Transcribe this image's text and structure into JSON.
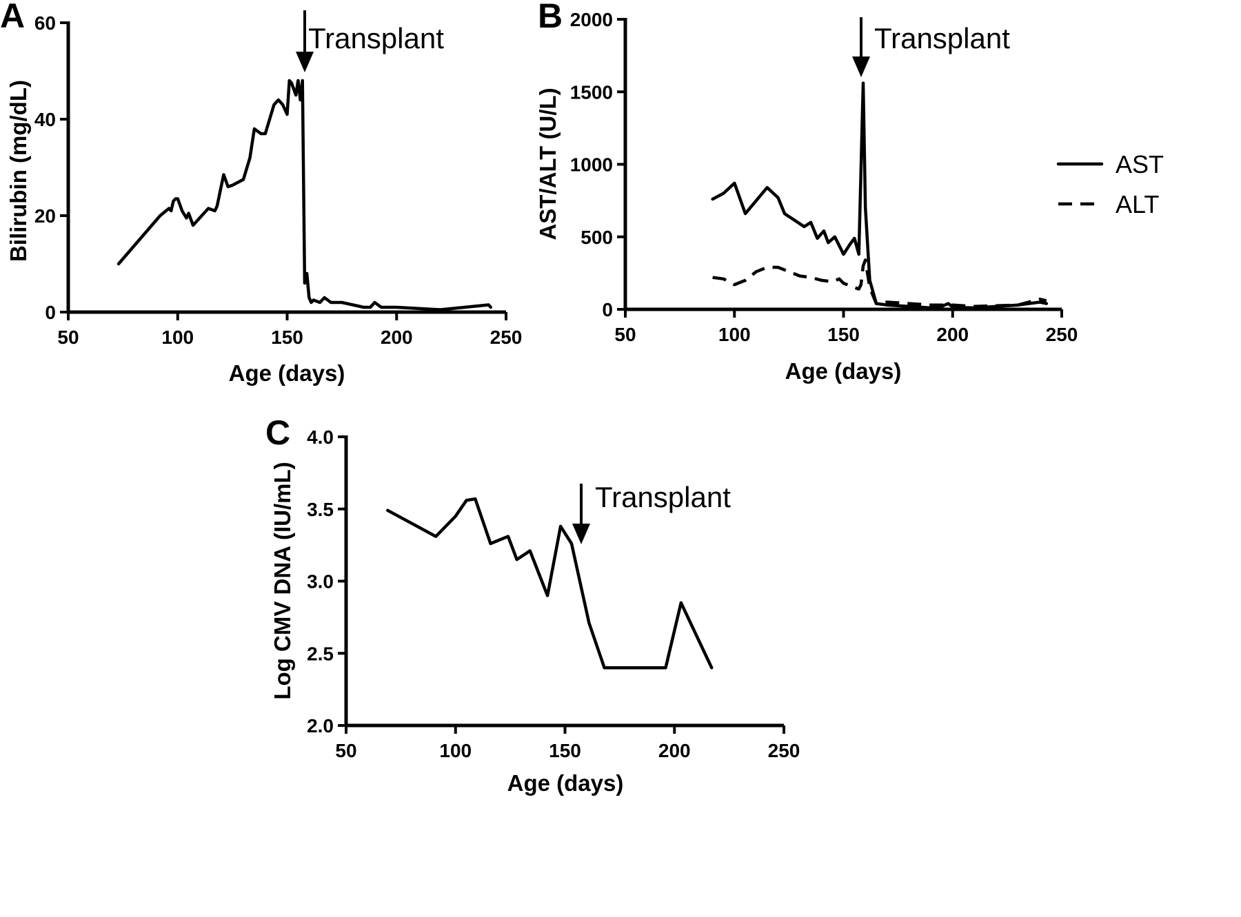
{
  "chart_data": [
    {
      "panel": "A",
      "type": "line",
      "xlabel": "Age (days)",
      "ylabel": "Bilirubin (mg/dL)",
      "xlim": [
        50,
        250
      ],
      "ylim": [
        0,
        60
      ],
      "xticks": [
        50,
        100,
        150,
        200,
        250
      ],
      "yticks": [
        0,
        20,
        40,
        60
      ],
      "annotations": [
        {
          "text": "Transplant",
          "x": 157
        }
      ],
      "series": [
        {
          "style": "solid",
          "x": [
            73,
            92,
            96,
            97,
            98,
            99,
            100,
            102,
            104,
            105,
            107,
            110,
            114,
            117,
            118,
            121,
            123,
            125,
            130,
            133,
            135,
            138,
            140,
            144,
            146,
            148,
            150,
            151,
            152,
            154,
            155,
            156,
            157,
            158,
            159,
            160,
            161,
            162,
            165,
            167,
            170,
            175,
            180,
            185,
            188,
            190,
            193,
            200,
            220,
            242,
            243
          ],
          "y": [
            10,
            20,
            21.5,
            21,
            23,
            23.5,
            23.5,
            21,
            19.5,
            20.5,
            18,
            19.5,
            21.5,
            21,
            22,
            28.5,
            26,
            26.3,
            27.5,
            32,
            38,
            37,
            37,
            43,
            44,
            43,
            41,
            48,
            47.5,
            45,
            48,
            44,
            48,
            6,
            8,
            3,
            2,
            2.5,
            2,
            3,
            2,
            2,
            1.5,
            1,
            1,
            2,
            1,
            1,
            0.5,
            1.5,
            1
          ]
        }
      ]
    },
    {
      "panel": "B",
      "type": "line",
      "xlabel": "Age (days)",
      "ylabel": "AST/ALT (U/L)",
      "xlim": [
        50,
        250
      ],
      "ylim": [
        0,
        2000
      ],
      "xticks": [
        50,
        100,
        150,
        200,
        250
      ],
      "yticks": [
        0,
        500,
        1000,
        1500,
        2000
      ],
      "annotations": [
        {
          "text": "Transplant",
          "x": 158
        }
      ],
      "legend_position": "right",
      "series": [
        {
          "name": "AST",
          "style": "solid",
          "x": [
            90,
            95,
            100,
            105,
            115,
            120,
            123,
            128,
            132,
            135,
            138,
            141,
            143,
            146,
            148,
            150,
            153,
            155,
            157,
            159,
            160,
            162,
            165,
            170,
            180,
            190,
            195,
            198,
            200,
            210,
            220,
            230,
            240,
            243
          ],
          "y": [
            760,
            800,
            870,
            660,
            840,
            770,
            660,
            610,
            570,
            600,
            490,
            540,
            460,
            500,
            440,
            380,
            450,
            490,
            380,
            1560,
            700,
            200,
            40,
            30,
            20,
            10,
            20,
            40,
            15,
            10,
            20,
            30,
            50,
            40
          ]
        },
        {
          "name": "ALT",
          "style": "dashed",
          "x": [
            90,
            95,
            100,
            105,
            110,
            115,
            120,
            125,
            130,
            135,
            140,
            145,
            148,
            150,
            155,
            157,
            158,
            159,
            160,
            162,
            165,
            170,
            180,
            190,
            200,
            210,
            220,
            230,
            240,
            243
          ],
          "y": [
            220,
            210,
            170,
            200,
            260,
            290,
            290,
            260,
            230,
            220,
            200,
            190,
            210,
            180,
            150,
            140,
            170,
            300,
            340,
            150,
            40,
            50,
            40,
            30,
            30,
            20,
            25,
            30,
            70,
            60
          ]
        }
      ]
    },
    {
      "panel": "C",
      "type": "line",
      "xlabel": "Age (days)",
      "ylabel": "Log CMV DNA (IU/mL)",
      "xlim": [
        50,
        250
      ],
      "ylim": [
        2.0,
        4.0
      ],
      "xticks": [
        50,
        100,
        150,
        200,
        250
      ],
      "yticks": [
        2.0,
        2.5,
        3.0,
        3.5,
        4.0
      ],
      "annotations": [
        {
          "text": "Transplant",
          "x": 157
        }
      ],
      "series": [
        {
          "style": "solid",
          "x": [
            69,
            91,
            100,
            105,
            109,
            116,
            124,
            128,
            134,
            142,
            148,
            153,
            161,
            168,
            196,
            203,
            217
          ],
          "y": [
            3.49,
            3.31,
            3.45,
            3.56,
            3.57,
            3.26,
            3.31,
            3.15,
            3.21,
            2.9,
            3.38,
            3.26,
            2.71,
            2.4,
            2.4,
            2.85,
            2.4
          ]
        }
      ]
    }
  ]
}
